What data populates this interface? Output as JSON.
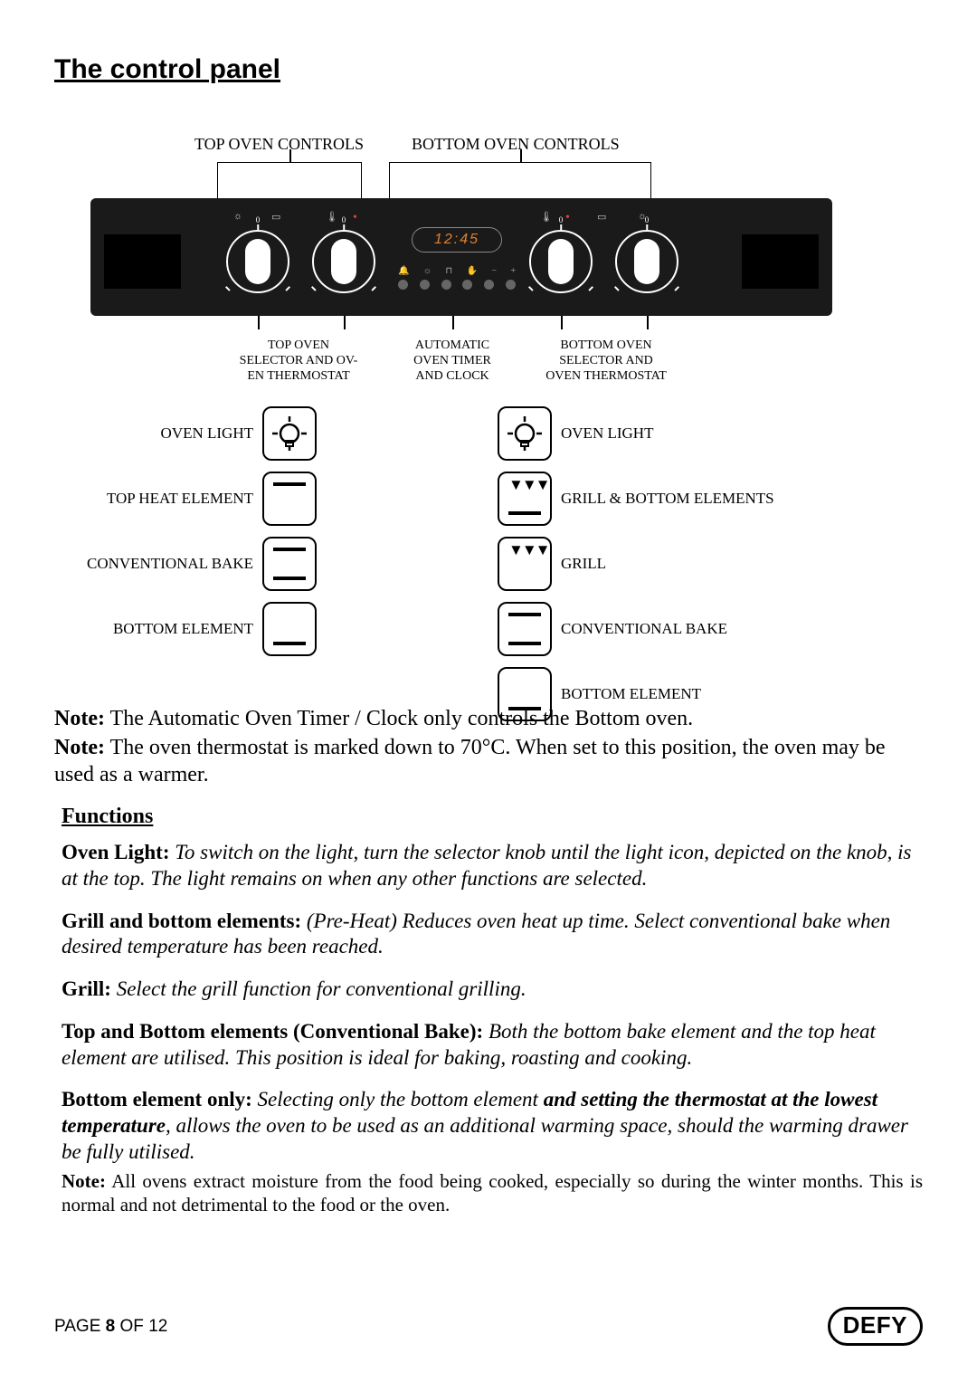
{
  "title": "The control panel",
  "topLabels": {
    "left": "TOP  OVEN CONTROLS",
    "right": "BOTTOM OVEN CONTROLS"
  },
  "clock": "12:45",
  "bottomLabels": {
    "topOven": "TOP OVEN\nSELECTOR AND OV-\nEN THERMOSTAT",
    "timer": "AUTOMATIC\nOVEN TIMER\nAND CLOCK",
    "bottomOven": "BOTTOM OVEN\nSELECTOR AND\nOVEN THERMOSTAT"
  },
  "leftIcons": [
    "OVEN LIGHT",
    "TOP HEAT ELEMENT",
    "CONVENTIONAL BAKE",
    "BOTTOM  ELEMENT"
  ],
  "rightIcons": [
    "OVEN LIGHT",
    "GRILL & BOTTOM  ELEMENTS",
    "GRILL",
    "CONVENTIONAL BAKE",
    "BOTTOM  ELEMENT"
  ],
  "note1_label": "Note:",
  "note1_text": " The Automatic Oven Timer / Clock only controls the Bottom oven.",
  "note2_label": "Note:",
  "note2_text": " The oven thermostat is marked down to 70°C. When set to this position, the oven may be used as a warmer.",
  "functionsHeading": "Functions",
  "f_ovenlight_h": "Oven Light: ",
  "f_ovenlight_t": "To switch on the light, turn the selector knob until the light icon, depicted on the knob, is at the top. The light remains on when any other functions are selected.",
  "f_grillbot_h": "Grill and bottom elements: ",
  "f_grillbot_t": "(Pre-Heat) Reduces oven heat up time. Select conventional bake when desired temperature has been reached.",
  "f_grill_h": "Grill: ",
  "f_grill_t": "Select the grill function for conventional grilling.",
  "f_conv_h": "Top and Bottom elements (Conventional Bake):  ",
  "f_conv_t": "Both the bottom bake element and the top heat element are utilised. This position is ideal for baking, roasting and cooking.",
  "f_bot_h": "Bottom element only:  ",
  "f_bot_t1": "Selecting only the bottom element ",
  "f_bot_bi": "and setting the thermostat at the lowest temperature",
  "f_bot_t2": ", allows the oven to be used as an additional warming space, should the warming drawer be fully utilised.",
  "moisture_h": "Note:",
  "moisture_t": " All ovens extract  moisture from the food being cooked, especially so during the winter months. This is normal and not detrimental to the food or the oven.",
  "page_prefix": "PAGE ",
  "page_num": "8",
  "page_suffix": " OF 12",
  "logo": "DEFY",
  "colors": {
    "panel": "#1a1a1a",
    "clockText": "#e08030",
    "redDot": "#e04040"
  }
}
